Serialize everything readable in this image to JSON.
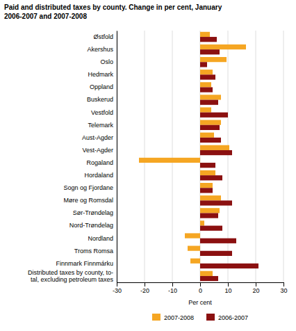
{
  "chart_data": {
    "type": "bar",
    "orientation": "horizontal",
    "title": "Paid and distributed taxes by county. Change in per cent, January\n2006-2007 and 2007-2008",
    "categories": [
      "Østfold",
      "Akershus",
      "Oslo",
      "Hedmark",
      "Oppland",
      "Buskerud",
      "Vestfold",
      "Telemark",
      "Aust-Agder",
      "Vest-Agder",
      "Rogaland",
      "Hordaland",
      "Sogn og Fjordane",
      "Møre og Romsdal",
      "Sør-Trøndelag",
      "Nord-Trøndelag",
      "Nordland",
      "Troms Romsa",
      "Finnmark Finnmárku",
      "Distributed taxes by county, to-\ntal, excluding petroleum taxes"
    ],
    "series": [
      {
        "name": "2007-2008",
        "color": "#F5A623",
        "values": [
          3.5,
          16.5,
          9.5,
          4.5,
          4.0,
          7.5,
          4.0,
          7.5,
          5.0,
          10.5,
          -22.0,
          5.5,
          4.5,
          7.5,
          7.0,
          1.5,
          -5.5,
          -4.5,
          -3.5,
          4.5
        ]
      },
      {
        "name": "2006-2007",
        "color": "#8B1010",
        "values": [
          6.0,
          7.0,
          2.5,
          5.5,
          4.5,
          6.5,
          10.0,
          7.0,
          7.5,
          11.5,
          5.5,
          8.0,
          4.5,
          11.5,
          6.5,
          8.0,
          13.0,
          11.5,
          21.0,
          6.5
        ]
      }
    ],
    "xlabel": "Per cent",
    "xlim": [
      -30,
      30
    ],
    "xticks": [
      -30,
      -20,
      -10,
      0,
      10,
      20,
      30
    ],
    "grid": true,
    "legend": "bottom"
  }
}
